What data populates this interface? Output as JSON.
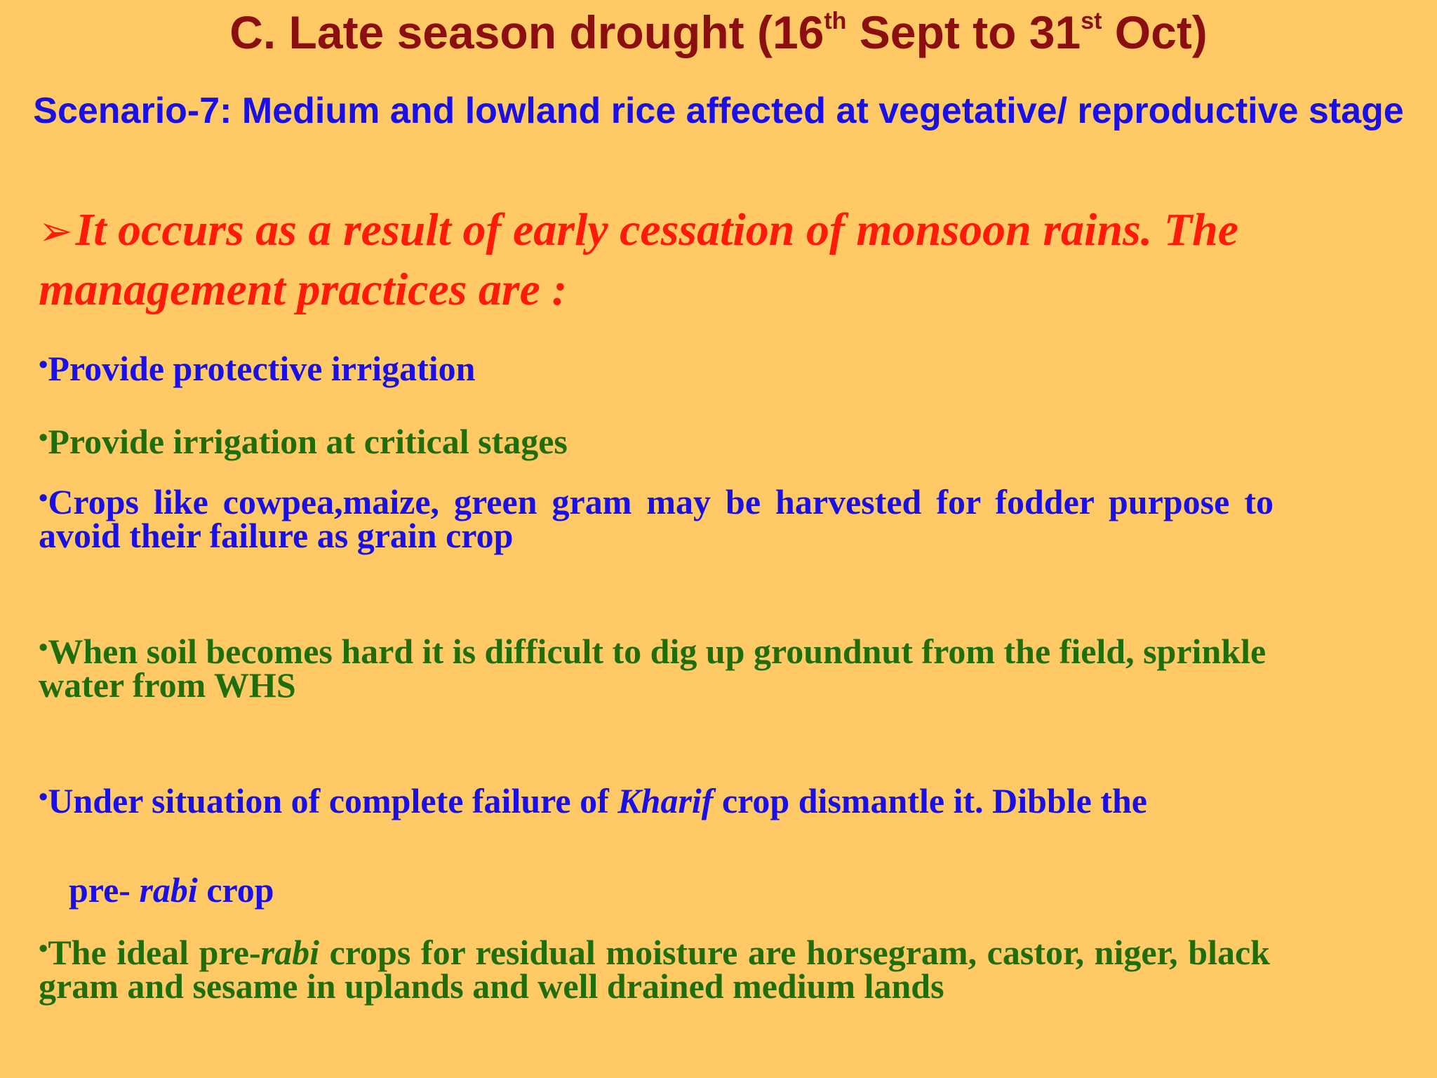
{
  "slide": {
    "title": {
      "prefix": "C. Late season drought (16",
      "sup1": "th",
      "middle": " Sept  to 31",
      "sup2": "st",
      "suffix": " Oct)"
    },
    "subtitle": "Scenario-7: Medium and lowland rice affected at vegetative/ reproductive stage",
    "intro": {
      "arrow_icon": "➢",
      "text": "It occurs as a result of early cessation of monsoon rains. The management practices are :"
    },
    "bullets": {
      "b1": "Provide protective irrigation",
      "b2": "Provide irrigation at critical stages",
      "b3": "Crops like cowpea,maize, green gram may be harvested for fodder purpose to avoid their failure as grain crop",
      "b4": "When soil becomes hard it is difficult to dig up groundnut from the  field, sprinkle water from WHS",
      "b5_part1": "Under situation of complete failure of ",
      "b5_italic": "Kharif",
      "b5_part2": " crop dismantle it. Dibble the",
      "b5b_part1": "pre- ",
      "b5b_italic": "rabi",
      "b5b_part2": " crop",
      "b6_part1": "The ideal pre-",
      "b6_italic": "rabi",
      "b6_part2": " crops for residual moisture are horsegram, castor, niger, black gram and sesame in uplands and well drained medium lands"
    },
    "bullet_symbol": "•",
    "colors": {
      "background": "#FFC966",
      "title": "#8B0F0F",
      "subtitle": "#1A10E6",
      "intro": "#FF1A0A",
      "blue_text": "#1A10E6",
      "green_text": "#1F6E0A"
    }
  }
}
